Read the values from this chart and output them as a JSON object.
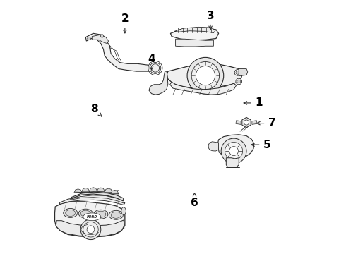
{
  "background_color": "#ffffff",
  "line_color": "#2a2a2a",
  "label_color": "#000000",
  "figsize": [
    4.9,
    3.6
  ],
  "dpi": 100,
  "labels": {
    "1": {
      "xt": 0.838,
      "yt": 0.595,
      "xa": 0.768,
      "ya": 0.595
    },
    "2": {
      "xt": 0.31,
      "yt": 0.928,
      "xa": 0.31,
      "ya": 0.86
    },
    "3": {
      "xt": 0.648,
      "yt": 0.94,
      "xa": 0.648,
      "ya": 0.875
    },
    "4": {
      "xt": 0.415,
      "yt": 0.77,
      "xa": 0.415,
      "ya": 0.715
    },
    "5": {
      "xt": 0.87,
      "yt": 0.43,
      "xa": 0.798,
      "ya": 0.43
    },
    "6": {
      "xt": 0.585,
      "yt": 0.2,
      "xa": 0.585,
      "ya": 0.25
    },
    "7": {
      "xt": 0.89,
      "yt": 0.515,
      "xa": 0.82,
      "ya": 0.515
    },
    "8": {
      "xt": 0.19,
      "yt": 0.57,
      "xa": 0.22,
      "ya": 0.54
    }
  }
}
